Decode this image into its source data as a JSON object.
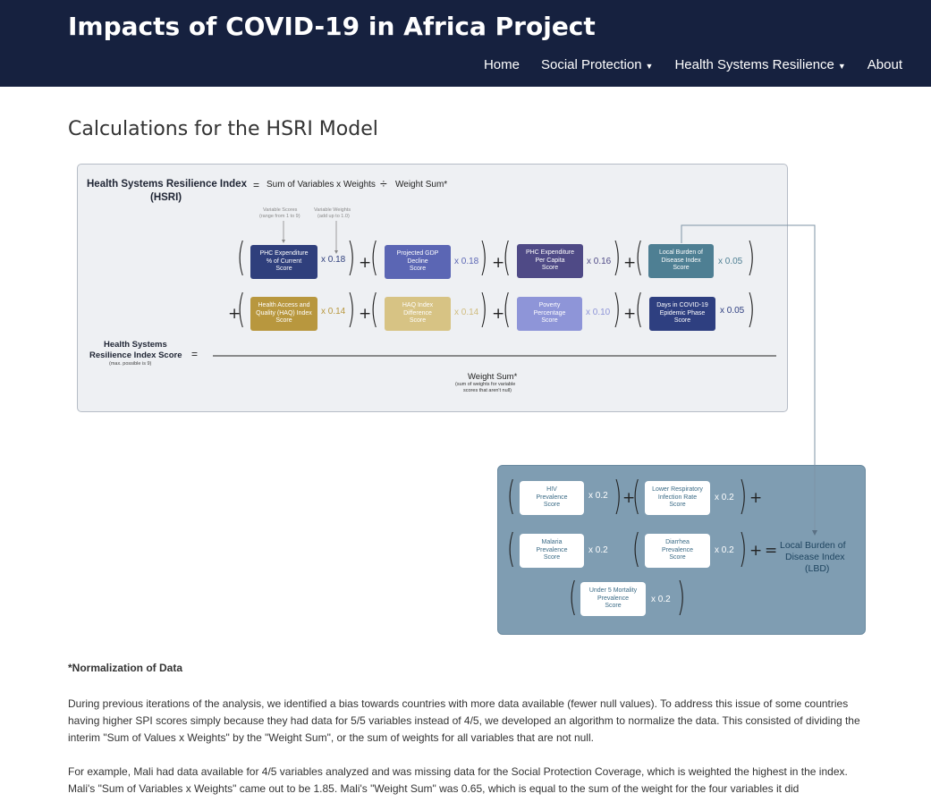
{
  "header": {
    "brand": "Impacts of COVID-19 in Africa Project",
    "nav": {
      "home": "Home",
      "social_protection": "Social Protection",
      "health_systems": "Health Systems Resilience",
      "about": "About"
    }
  },
  "page": {
    "title": "Calculations for the HSRI Model"
  },
  "diagram": {
    "hsri_title": "Health Systems Resilience Index",
    "hsri_abbr": "(HSRI)",
    "equals": "=",
    "sum_label": "Sum of Variables x Weights",
    "divide": "÷",
    "weight_sum_label": "Weight Sum*",
    "ann_scores_1": "Variable Scores",
    "ann_scores_2": "(range from 1 to 9)",
    "ann_weights_1": "Variable Weights",
    "ann_weights_2": "(add up to 1.0)",
    "plus": "+",
    "vars": [
      {
        "l1": "PHC Expenditure",
        "l2": "% of Current",
        "l3": "Score",
        "weight": "x 0.18"
      },
      {
        "l1": "Projected GDP",
        "l2": "Decline",
        "l3": "Score",
        "weight": "x 0.18"
      },
      {
        "l1": "PHC Expenditure",
        "l2": "Per Capita",
        "l3": "Score",
        "weight": "x 0.16"
      },
      {
        "l1": "Local Burden of",
        "l2": "Disease Index",
        "l3": "Score",
        "weight": "x 0.05"
      },
      {
        "l1": "Health Access and",
        "l2": "Quality (HAQ) Index",
        "l3": "Score",
        "weight": "x 0.14"
      },
      {
        "l1": "HAQ Index",
        "l2": "Difference",
        "l3": "Score",
        "weight": "x 0.14"
      },
      {
        "l1": "Poverty",
        "l2": "Percentage",
        "l3": "Score",
        "weight": "x 0.10"
      },
      {
        "l1": "Days in COVID-19",
        "l2": "Epidemic Phase",
        "l3": "Score",
        "weight": "x 0.05"
      }
    ],
    "score_label_1": "Health Systems",
    "score_label_2": "Resilience Index Score",
    "score_label_3": "(max. possible is 9)",
    "denominator_1": "Weight Sum*",
    "denominator_2": "(sum of weights for variable",
    "denominator_3": "scores that aren't null)",
    "lbd_vars": [
      {
        "l1": "HIV",
        "l2": "Prevalence",
        "l3": "Score",
        "weight": "x 0.2"
      },
      {
        "l1": "Lower Respiratory",
        "l2": "Infection Rate",
        "l3": "Score",
        "weight": "x 0.2"
      },
      {
        "l1": "Malaria",
        "l2": "Prevalence",
        "l3": "Score",
        "weight": "x 0.2"
      },
      {
        "l1": "Diarrhea",
        "l2": "Prevalence",
        "l3": "Score",
        "weight": "x 0.2"
      },
      {
        "l1": "Under 5 Mortality",
        "l2": "Prevalence",
        "l3": "Score",
        "weight": "x 0.2"
      }
    ],
    "lbd_result_1": "Local Burden of",
    "lbd_result_2": "Disease Index",
    "lbd_result_3": "(LBD)",
    "colors": {
      "navy": "#2f3f7c",
      "indigo": "#5b66b4",
      "purple": "#4f4a86",
      "teal": "#4e7f93",
      "gold": "#b8973e",
      "tan": "#d7c384",
      "lavender": "#8e95d8",
      "navy2": "#2e3f80"
    }
  },
  "body": {
    "note_heading": "*Normalization of Data",
    "para1": "During previous iterations of the analysis, we identified a bias towards countries with more data available (fewer null values). To address this issue of some countries having higher SPI scores simply because they had data for 5/5 variables instead of 4/5, we developed an algorithm to normalize the data. This consisted of dividing the interim \"Sum of Values x Weights\" by the \"Weight Sum\", or the sum of weights for all variables that are not null.",
    "para2": "For example, Mali had data available for 4/5 variables analyzed and was missing data for the Social Protection Coverage, which is weighted the highest in the index. Mali's \"Sum of Variables x Weights\" came out to be 1.85. Mali's \"Weight Sum\" was 0.65, which is equal to the sum of the weight for the four variables it did"
  }
}
